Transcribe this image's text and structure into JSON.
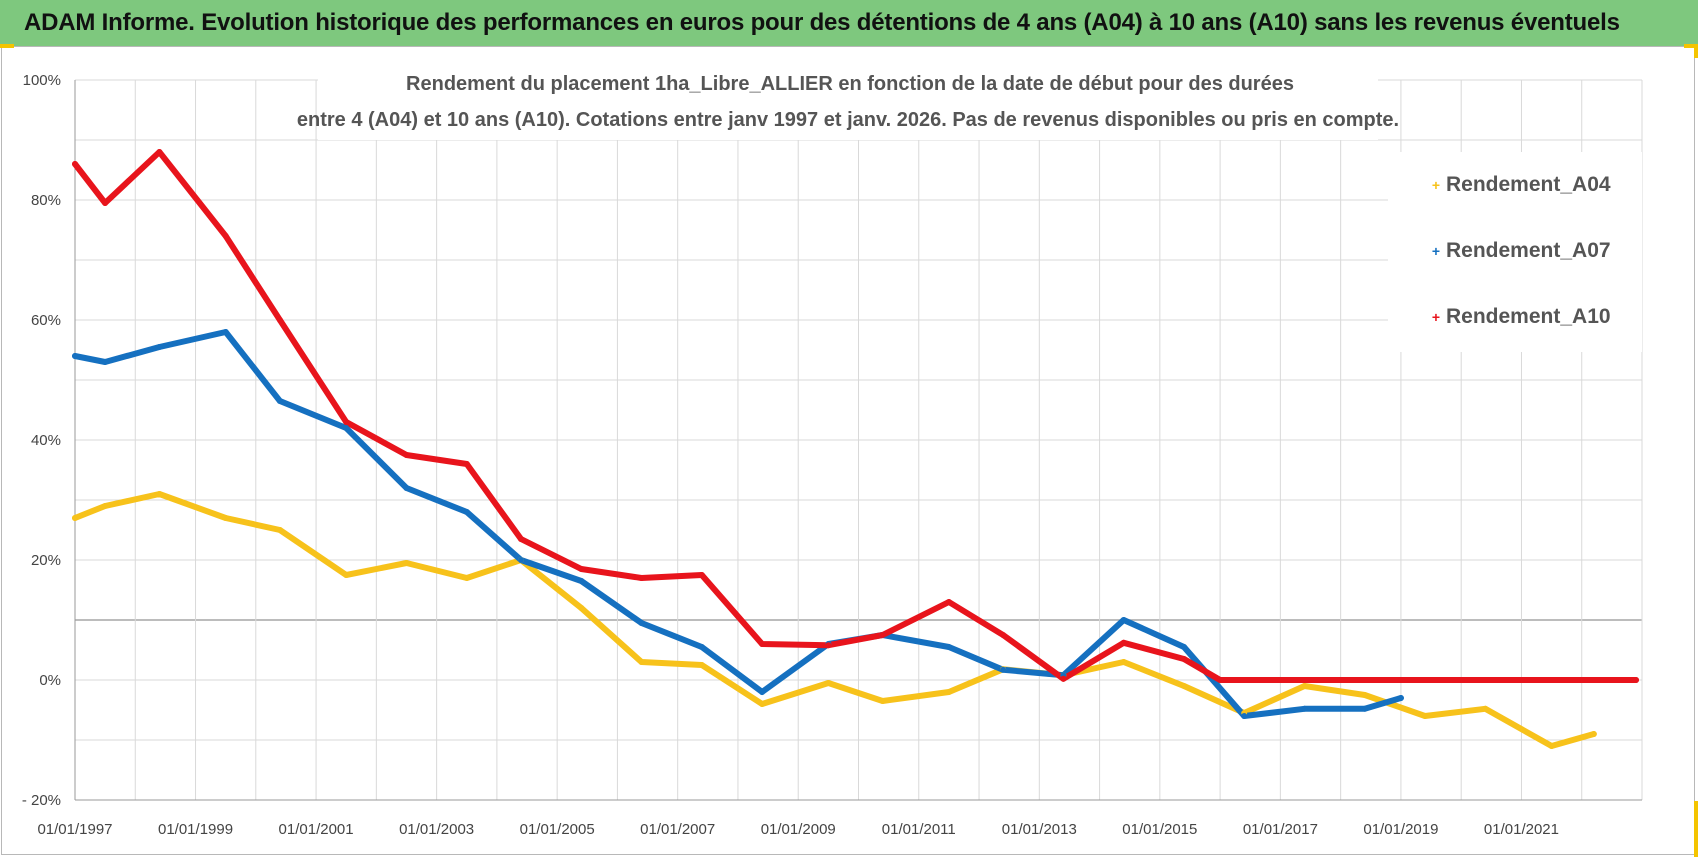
{
  "banner": {
    "text": "ADAM Informe. Evolution historique des performances en euros pour des détentions de 4 ans (A04) à 10 ans (A10) sans les revenus éventuels"
  },
  "colors": {
    "banner_bg": "#7ec87e",
    "A04": "#f7c21b",
    "A07": "#1570c0",
    "A10": "#e8141c",
    "grid": "#d9d9d9"
  },
  "chart_data": {
    "type": "line",
    "title_line1": "Rendement du placement 1ha_Libre_ALLIER en fonction de la date de début pour des durées",
    "title_line2": "entre 4 (A04) et 10 ans (A10).  Cotations entre janv 1997 et janv. 2026. Pas de revenus disponibles ou pris en compte.",
    "xlabel": "",
    "ylabel": "",
    "x_range": [
      1997.0,
      2023.0
    ],
    "ylim": [
      -20,
      100
    ],
    "x_tick_labels": [
      {
        "x": 1997,
        "label": "01/01/1997"
      },
      {
        "x": 1999,
        "label": "01/01/1999"
      },
      {
        "x": 2001,
        "label": "01/01/2001"
      },
      {
        "x": 2003,
        "label": "01/01/2003"
      },
      {
        "x": 2005,
        "label": "01/01/2005"
      },
      {
        "x": 2007,
        "label": "01/01/2007"
      },
      {
        "x": 2009,
        "label": "01/01/2009"
      },
      {
        "x": 2011,
        "label": "01/01/2011"
      },
      {
        "x": 2013,
        "label": "01/01/2013"
      },
      {
        "x": 2015,
        "label": "01/01/2015"
      },
      {
        "x": 2017,
        "label": "01/01/2017"
      },
      {
        "x": 2019,
        "label": "01/01/2019"
      },
      {
        "x": 2021,
        "label": "01/01/2021"
      }
    ],
    "y_ticks": [
      {
        "value": 100,
        "label": "100%"
      },
      {
        "value": 80,
        "label": "80%"
      },
      {
        "value": 60,
        "label": "60%"
      },
      {
        "value": 40,
        "label": "40%"
      },
      {
        "value": 20,
        "label": "20%"
      },
      {
        "value": 0,
        "label": "0%"
      },
      {
        "value": -20,
        "label": "- 20%"
      }
    ],
    "grid": true,
    "legend_position": "top-right",
    "series": [
      {
        "name": "Rendement_A04",
        "color": "#f7c21b",
        "points": [
          [
            1997.0,
            27
          ],
          [
            1997.5,
            29
          ],
          [
            1998.4,
            31
          ],
          [
            1999.5,
            27
          ],
          [
            2000.4,
            25
          ],
          [
            2001.5,
            17.5
          ],
          [
            2002.5,
            19.5
          ],
          [
            2003.5,
            17
          ],
          [
            2004.4,
            20
          ],
          [
            2005.4,
            12
          ],
          [
            2006.4,
            3
          ],
          [
            2007.4,
            2.5
          ],
          [
            2008.4,
            -4
          ],
          [
            2009.5,
            -0.5
          ],
          [
            2010.4,
            -3.5
          ],
          [
            2011.5,
            -2
          ],
          [
            2012.4,
            1.8
          ],
          [
            2013.4,
            0.8
          ],
          [
            2014.4,
            3
          ],
          [
            2015.4,
            -1
          ],
          [
            2016.4,
            -5.5
          ],
          [
            2017.4,
            -1
          ],
          [
            2018.4,
            -2.5
          ],
          [
            2019.4,
            -6
          ],
          [
            2020.4,
            -4.8
          ],
          [
            2021.5,
            -11
          ],
          [
            2022.2,
            -9
          ]
        ]
      },
      {
        "name": "Rendement_A07",
        "color": "#1570c0",
        "points": [
          [
            1997.0,
            54
          ],
          [
            1997.5,
            53
          ],
          [
            1998.4,
            55.5
          ],
          [
            1999.5,
            58
          ],
          [
            2000.4,
            46.5
          ],
          [
            2001.5,
            42
          ],
          [
            2002.5,
            32
          ],
          [
            2003.5,
            28
          ],
          [
            2004.4,
            20
          ],
          [
            2005.4,
            16.5
          ],
          [
            2006.4,
            9.5
          ],
          [
            2007.4,
            5.5
          ],
          [
            2008.4,
            -2
          ],
          [
            2009.5,
            6
          ],
          [
            2010.4,
            7.5
          ],
          [
            2011.5,
            5.5
          ],
          [
            2012.4,
            1.7
          ],
          [
            2013.4,
            0.8
          ],
          [
            2014.4,
            10
          ],
          [
            2015.4,
            5.5
          ],
          [
            2016.4,
            -6
          ],
          [
            2017.4,
            -4.8
          ],
          [
            2018.4,
            -4.8
          ],
          [
            2019.0,
            -3
          ]
        ]
      },
      {
        "name": "Rendement_A10",
        "color": "#e8141c",
        "points": [
          [
            1997.0,
            86
          ],
          [
            1997.5,
            79.5
          ],
          [
            1998.4,
            88
          ],
          [
            1999.5,
            74
          ],
          [
            2000.4,
            60
          ],
          [
            2001.5,
            43
          ],
          [
            2002.5,
            37.5
          ],
          [
            2003.5,
            36
          ],
          [
            2004.4,
            23.5
          ],
          [
            2005.4,
            18.5
          ],
          [
            2006.4,
            17
          ],
          [
            2007.4,
            17.5
          ],
          [
            2008.4,
            6
          ],
          [
            2009.5,
            5.8
          ],
          [
            2010.4,
            7.5
          ],
          [
            2011.5,
            13
          ],
          [
            2012.4,
            7.5
          ],
          [
            2013.4,
            0.2
          ],
          [
            2014.4,
            6.2
          ],
          [
            2015.4,
            3.5
          ],
          [
            2016.0,
            0
          ],
          [
            2017.0,
            0
          ],
          [
            2018.0,
            0
          ],
          [
            2019.0,
            0
          ],
          [
            2020.0,
            0
          ],
          [
            2021.0,
            0
          ],
          [
            2022.0,
            0
          ],
          [
            2022.9,
            0
          ]
        ]
      }
    ],
    "legend": [
      "Rendement_A04",
      "Rendement_A07",
      "Rendement_A10"
    ]
  }
}
